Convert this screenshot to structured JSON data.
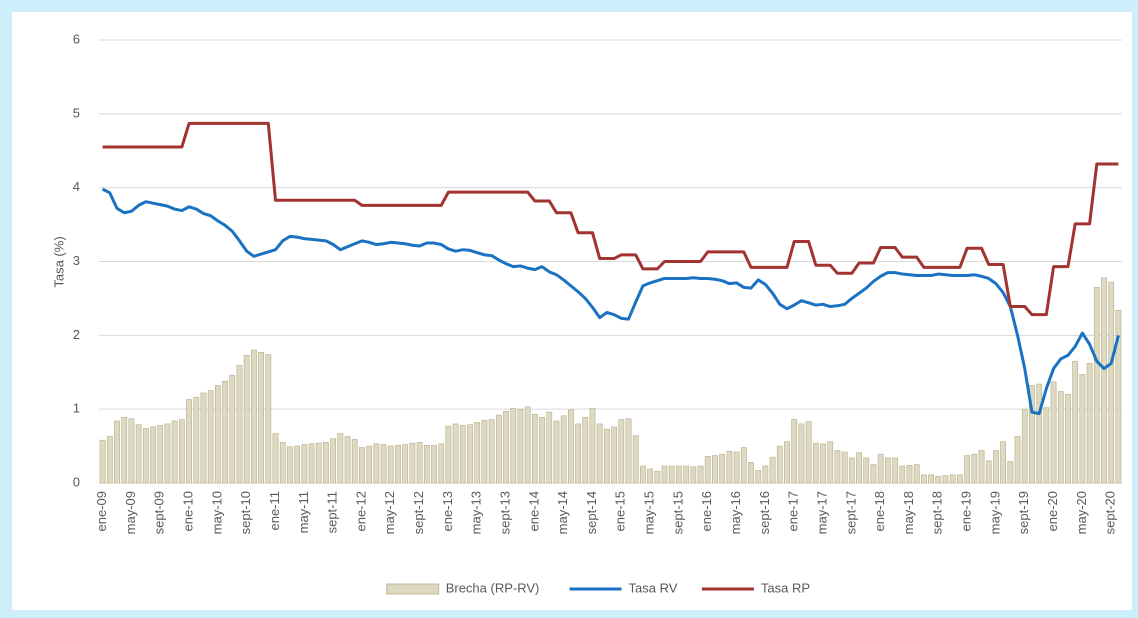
{
  "chart_data": {
    "type": "combo",
    "y_label": "Tasa (%)",
    "ylim": [
      0,
      6
    ],
    "yticks": [
      0,
      1,
      2,
      3,
      4,
      5,
      6
    ],
    "grid": true,
    "legend": "bottom",
    "categories": [
      "ene-09",
      null,
      null,
      null,
      "may-09",
      null,
      null,
      null,
      "sept-09",
      null,
      null,
      null,
      "ene-10",
      null,
      null,
      null,
      "may-10",
      null,
      null,
      null,
      "sept-10",
      null,
      null,
      null,
      "ene-11",
      null,
      null,
      null,
      "may-11",
      null,
      null,
      null,
      "sept-11",
      null,
      null,
      null,
      "ene-12",
      null,
      null,
      null,
      "may-12",
      null,
      null,
      null,
      "sept-12",
      null,
      null,
      null,
      "ene-13",
      null,
      null,
      null,
      "may-13",
      null,
      null,
      null,
      "sept-13",
      null,
      null,
      null,
      "ene-14",
      null,
      null,
      null,
      "may-14",
      null,
      null,
      null,
      "sept-14",
      null,
      null,
      null,
      "ene-15",
      null,
      null,
      null,
      "may-15",
      null,
      null,
      null,
      "sept-15",
      null,
      null,
      null,
      "ene-16",
      null,
      null,
      null,
      "may-16",
      null,
      null,
      null,
      "sept-16",
      null,
      null,
      null,
      "ene-17",
      null,
      null,
      null,
      "may-17",
      null,
      null,
      null,
      "sept-17",
      null,
      null,
      null,
      "ene-18",
      null,
      null,
      null,
      "may-18",
      null,
      null,
      null,
      "sept-18",
      null,
      null,
      null,
      "ene-19",
      null,
      null,
      null,
      "may-19",
      null,
      null,
      null,
      "sept-19",
      null,
      null,
      null,
      "ene-20",
      null,
      null,
      null,
      "may-20",
      null,
      null,
      null,
      "sept-20",
      null
    ],
    "series": [
      {
        "name": "Brecha (RP-RV)",
        "type": "bar",
        "color": "#ddd9c3",
        "values": [
          0.58,
          0.63,
          0.84,
          0.89,
          0.87,
          0.79,
          0.74,
          0.76,
          0.78,
          0.8,
          0.84,
          0.86,
          1.13,
          1.16,
          1.22,
          1.25,
          1.32,
          1.38,
          1.46,
          1.59,
          1.73,
          1.8,
          1.77,
          1.74,
          0.67,
          0.55,
          0.49,
          0.5,
          0.52,
          0.53,
          0.54,
          0.55,
          0.6,
          0.67,
          0.63,
          0.59,
          0.48,
          0.5,
          0.53,
          0.52,
          0.5,
          0.51,
          0.52,
          0.54,
          0.55,
          0.51,
          0.51,
          0.53,
          0.77,
          0.8,
          0.78,
          0.79,
          0.82,
          0.85,
          0.86,
          0.92,
          0.97,
          1.01,
          1.0,
          1.03,
          0.93,
          0.89,
          0.96,
          0.84,
          0.91,
          0.99,
          0.8,
          0.89,
          1.01,
          0.8,
          0.73,
          0.76,
          0.86,
          0.87,
          0.64,
          0.23,
          0.19,
          0.16,
          0.23,
          0.23,
          0.23,
          0.23,
          0.22,
          0.23,
          0.36,
          0.37,
          0.39,
          0.43,
          0.42,
          0.48,
          0.28,
          0.17,
          0.23,
          0.35,
          0.5,
          0.56,
          0.86,
          0.8,
          0.83,
          0.54,
          0.53,
          0.56,
          0.44,
          0.42,
          0.34,
          0.41,
          0.34,
          0.25,
          0.39,
          0.34,
          0.34,
          0.23,
          0.24,
          0.25,
          0.11,
          0.11,
          0.09,
          0.1,
          0.11,
          0.11,
          0.37,
          0.39,
          0.44,
          0.3,
          0.44,
          0.56,
          0.29,
          0.63,
          1.0,
          1.32,
          1.34,
          1.02,
          1.37,
          1.24,
          1.2,
          1.65,
          1.47,
          1.62,
          2.65,
          2.78,
          2.72,
          2.34
        ]
      },
      {
        "name": "Tasa RV",
        "type": "line",
        "color": "#1a72c2",
        "values": [
          3.98,
          3.93,
          3.72,
          3.66,
          3.68,
          3.76,
          3.81,
          3.79,
          3.77,
          3.75,
          3.71,
          3.69,
          3.74,
          3.71,
          3.65,
          3.62,
          3.55,
          3.49,
          3.41,
          3.28,
          3.14,
          3.07,
          3.1,
          3.13,
          3.16,
          3.28,
          3.34,
          3.33,
          3.31,
          3.3,
          3.29,
          3.28,
          3.23,
          3.16,
          3.2,
          3.24,
          3.28,
          3.26,
          3.23,
          3.24,
          3.26,
          3.25,
          3.24,
          3.22,
          3.21,
          3.25,
          3.25,
          3.23,
          3.17,
          3.14,
          3.16,
          3.15,
          3.12,
          3.09,
          3.08,
          3.02,
          2.97,
          2.93,
          2.94,
          2.91,
          2.89,
          2.93,
          2.86,
          2.82,
          2.75,
          2.67,
          2.59,
          2.5,
          2.38,
          2.24,
          2.31,
          2.28,
          2.23,
          2.22,
          2.45,
          2.67,
          2.71,
          2.74,
          2.77,
          2.77,
          2.77,
          2.77,
          2.78,
          2.77,
          2.77,
          2.76,
          2.74,
          2.7,
          2.71,
          2.65,
          2.64,
          2.75,
          2.69,
          2.57,
          2.42,
          2.36,
          2.41,
          2.47,
          2.44,
          2.41,
          2.42,
          2.39,
          2.4,
          2.42,
          2.5,
          2.57,
          2.64,
          2.73,
          2.8,
          2.85,
          2.85,
          2.83,
          2.82,
          2.81,
          2.81,
          2.81,
          2.83,
          2.82,
          2.81,
          2.81,
          2.81,
          2.82,
          2.8,
          2.77,
          2.7,
          2.58,
          2.39,
          2.0,
          1.55,
          0.96,
          0.94,
          1.28,
          1.55,
          1.68,
          1.73,
          1.85,
          2.03,
          1.88,
          1.65,
          1.55,
          1.62,
          2.0
        ]
      },
      {
        "name": "Tasa RP",
        "type": "line",
        "color": "#a23330",
        "values": [
          4.55,
          4.55,
          4.55,
          4.55,
          4.55,
          4.55,
          4.55,
          4.55,
          4.55,
          4.55,
          4.55,
          4.55,
          4.87,
          4.87,
          4.87,
          4.87,
          4.87,
          4.87,
          4.87,
          4.87,
          4.87,
          4.87,
          4.87,
          4.87,
          3.83,
          3.83,
          3.83,
          3.83,
          3.83,
          3.83,
          3.83,
          3.83,
          3.83,
          3.83,
          3.83,
          3.83,
          3.76,
          3.76,
          3.76,
          3.76,
          3.76,
          3.76,
          3.76,
          3.76,
          3.76,
          3.76,
          3.76,
          3.76,
          3.94,
          3.94,
          3.94,
          3.94,
          3.94,
          3.94,
          3.94,
          3.94,
          3.94,
          3.94,
          3.94,
          3.94,
          3.82,
          3.82,
          3.82,
          3.66,
          3.66,
          3.66,
          3.39,
          3.39,
          3.39,
          3.04,
          3.04,
          3.04,
          3.09,
          3.09,
          3.09,
          2.9,
          2.9,
          2.9,
          3.0,
          3.0,
          3.0,
          3.0,
          3.0,
          3.0,
          3.13,
          3.13,
          3.13,
          3.13,
          3.13,
          3.13,
          2.92,
          2.92,
          2.92,
          2.92,
          2.92,
          2.92,
          3.27,
          3.27,
          3.27,
          2.95,
          2.95,
          2.95,
          2.84,
          2.84,
          2.84,
          2.98,
          2.98,
          2.98,
          3.19,
          3.19,
          3.19,
          3.06,
          3.06,
          3.06,
          2.92,
          2.92,
          2.92,
          2.92,
          2.92,
          2.92,
          3.18,
          3.18,
          3.18,
          2.96,
          2.96,
          2.96,
          2.39,
          2.39,
          2.39,
          2.28,
          2.28,
          2.28,
          2.93,
          2.93,
          2.93,
          3.51,
          3.51,
          3.51,
          4.32,
          4.32,
          4.32,
          4.32
        ]
      }
    ]
  }
}
